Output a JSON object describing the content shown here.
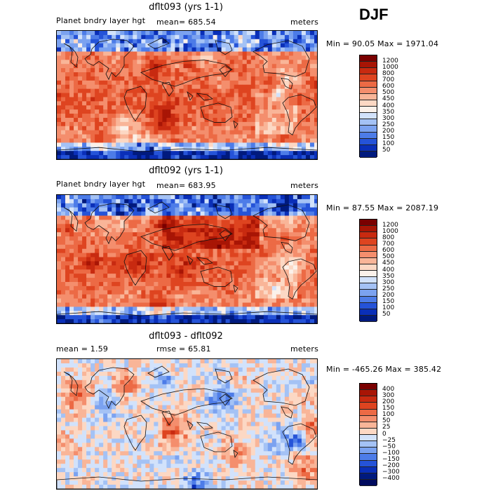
{
  "season": "DJF",
  "panels": [
    {
      "title": "dflt093 (yrs 1-1)",
      "left_label": "Planet bndry layer hgt",
      "mean_label": "mean= 685.54",
      "units": "meters",
      "minmax": "Min =  90.05 Max = 1971.04",
      "palette": "full"
    },
    {
      "title": "dflt092 (yrs 1-1)",
      "left_label": "Planet bndry layer hgt",
      "mean_label": "mean= 683.95",
      "units": "meters",
      "minmax": "Min =  87.55 Max = 2087.19",
      "palette": "full"
    },
    {
      "title": "dflt093 - dflt092",
      "left_label": "mean =    1.59",
      "mean_label": "rmse =   65.81",
      "units": "meters",
      "minmax": "Min = -465.26 Max = 385.42",
      "palette": "diff"
    }
  ],
  "chart_data": [
    {
      "type": "heatmap",
      "title": "dflt093 (yrs 1-1)",
      "variable": "Planet bndry layer hgt",
      "units": "meters",
      "mean": 685.54,
      "min": 90.05,
      "max": 1971.04,
      "colorbar_levels": [
        "1200",
        "1000",
        "800",
        "700",
        "600",
        "500",
        "450",
        "400",
        "350",
        "300",
        "250",
        "200",
        "150",
        "100",
        "50"
      ],
      "colors": [
        "#7a0000",
        "#a81505",
        "#c82a10",
        "#de4420",
        "#ec6a45",
        "#f48e6d",
        "#f9b598",
        "#fcd8c4",
        "#fbf1ea",
        "#d2e2fb",
        "#a4c2f5",
        "#7ba2f0",
        "#4d7ce8",
        "#2553d8",
        "#0a2fb8",
        "#001a7e"
      ]
    },
    {
      "type": "heatmap",
      "title": "dflt092 (yrs 1-1)",
      "variable": "Planet bndry layer hgt",
      "units": "meters",
      "mean": 683.95,
      "min": 87.55,
      "max": 2087.19,
      "colorbar_levels": [
        "1200",
        "1000",
        "800",
        "700",
        "600",
        "500",
        "450",
        "400",
        "350",
        "300",
        "250",
        "200",
        "150",
        "100",
        "50"
      ],
      "colors": [
        "#7a0000",
        "#a81505",
        "#c82a10",
        "#de4420",
        "#ec6a45",
        "#f48e6d",
        "#f9b598",
        "#fcd8c4",
        "#fbf1ea",
        "#d2e2fb",
        "#a4c2f5",
        "#7ba2f0",
        "#4d7ce8",
        "#2553d8",
        "#0a2fb8",
        "#001a7e"
      ]
    },
    {
      "type": "heatmap",
      "title": "dflt093 - dflt092",
      "units": "meters",
      "mean": 1.59,
      "rmse": 65.81,
      "min": -465.26,
      "max": 385.42,
      "colorbar_levels": [
        "400",
        "300",
        "200",
        "150",
        "100",
        "50",
        "25",
        "0",
        "−25",
        "−50",
        "−100",
        "−150",
        "−200",
        "−300",
        "−400"
      ],
      "colors": [
        "#7a0000",
        "#a81505",
        "#c82a10",
        "#de4420",
        "#ec6a45",
        "#f48e6d",
        "#f9b598",
        "#fcd8c4",
        "#d2e2fb",
        "#a4c2f5",
        "#7ba2f0",
        "#4d7ce8",
        "#2553d8",
        "#0a2fb8",
        "#001a7e",
        "#000a5e"
      ]
    }
  ]
}
